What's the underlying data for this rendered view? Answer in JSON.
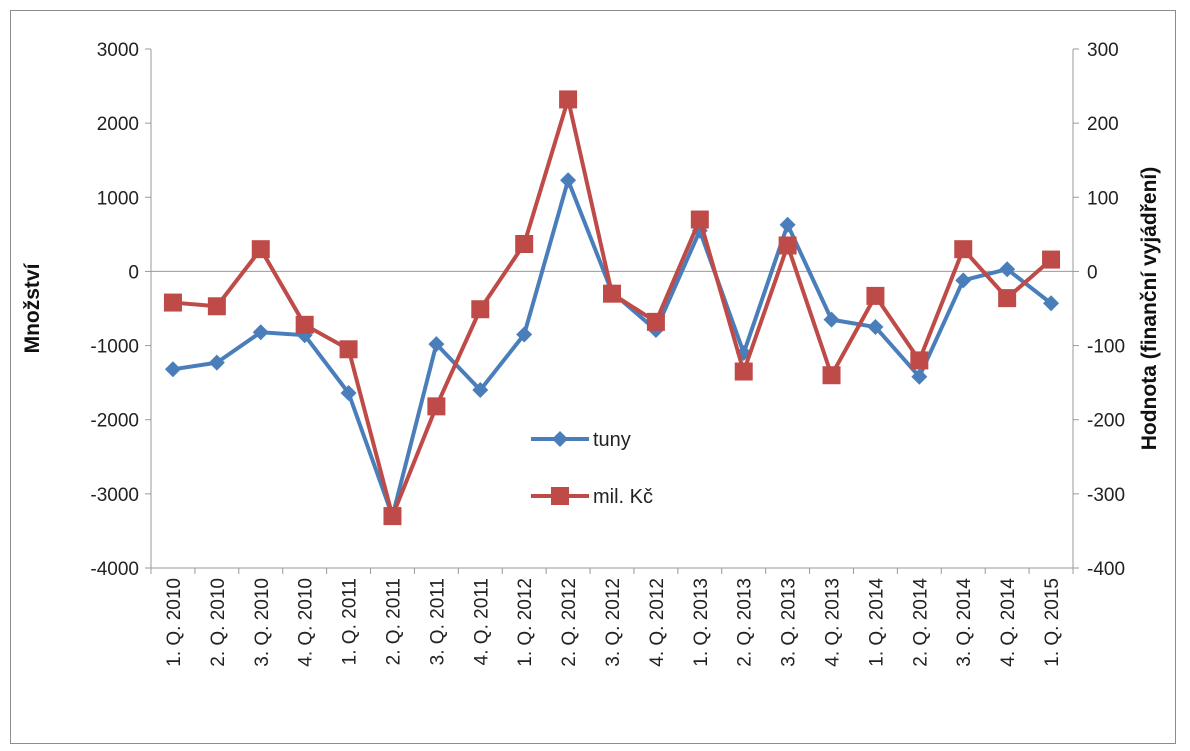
{
  "chart_data": {
    "type": "line",
    "title": "",
    "ylabel": "Množství",
    "y2label": "Hodnota (finanční vyjádření)",
    "ylim": [
      -4000,
      3000
    ],
    "y2lim": [
      -400,
      300
    ],
    "yticks": [
      "3000",
      "2000",
      "1000",
      "0",
      "-1000",
      "-2000",
      "-3000",
      "-4000"
    ],
    "y2ticks": [
      "300",
      "200",
      "100",
      "0",
      "-100",
      "-200",
      "-300",
      "-400"
    ],
    "categories": [
      "1. Q. 2010",
      "2. Q. 2010",
      "3. Q. 2010",
      "4. Q. 2010",
      "1. Q. 2011",
      "2. Q. 2011",
      "3. Q. 2011",
      "4. Q. 2011",
      "1. Q. 2012",
      "2. Q. 2012",
      "3. Q. 2012",
      "4. Q. 2012",
      "1. Q. 2013",
      "2. Q. 2013",
      "3. Q. 2013",
      "4. Q. 2013",
      "1. Q. 2014",
      "2. Q. 2014",
      "3. Q. 2014",
      "4. Q. 2014",
      "1. Q. 2015"
    ],
    "grid": false,
    "legend_position": "center",
    "series": [
      {
        "name": "tuny",
        "axis": "left",
        "color": "#4a7ebb",
        "marker": "diamond",
        "values": [
          -1320,
          -1230,
          -820,
          -860,
          -1640,
          -3300,
          -980,
          -1600,
          -850,
          1230,
          -280,
          -790,
          550,
          -1100,
          630,
          -650,
          -750,
          -1420,
          -120,
          30,
          -430
        ]
      },
      {
        "name": "mil. Kč",
        "axis": "right",
        "color": "#be4b48",
        "marker": "square",
        "values": [
          -42,
          -47,
          30,
          -72,
          -105,
          -330,
          -182,
          -51,
          37,
          232,
          -30,
          -68,
          70,
          -135,
          35,
          -140,
          -33,
          -120,
          30,
          -36,
          16
        ]
      }
    ]
  }
}
